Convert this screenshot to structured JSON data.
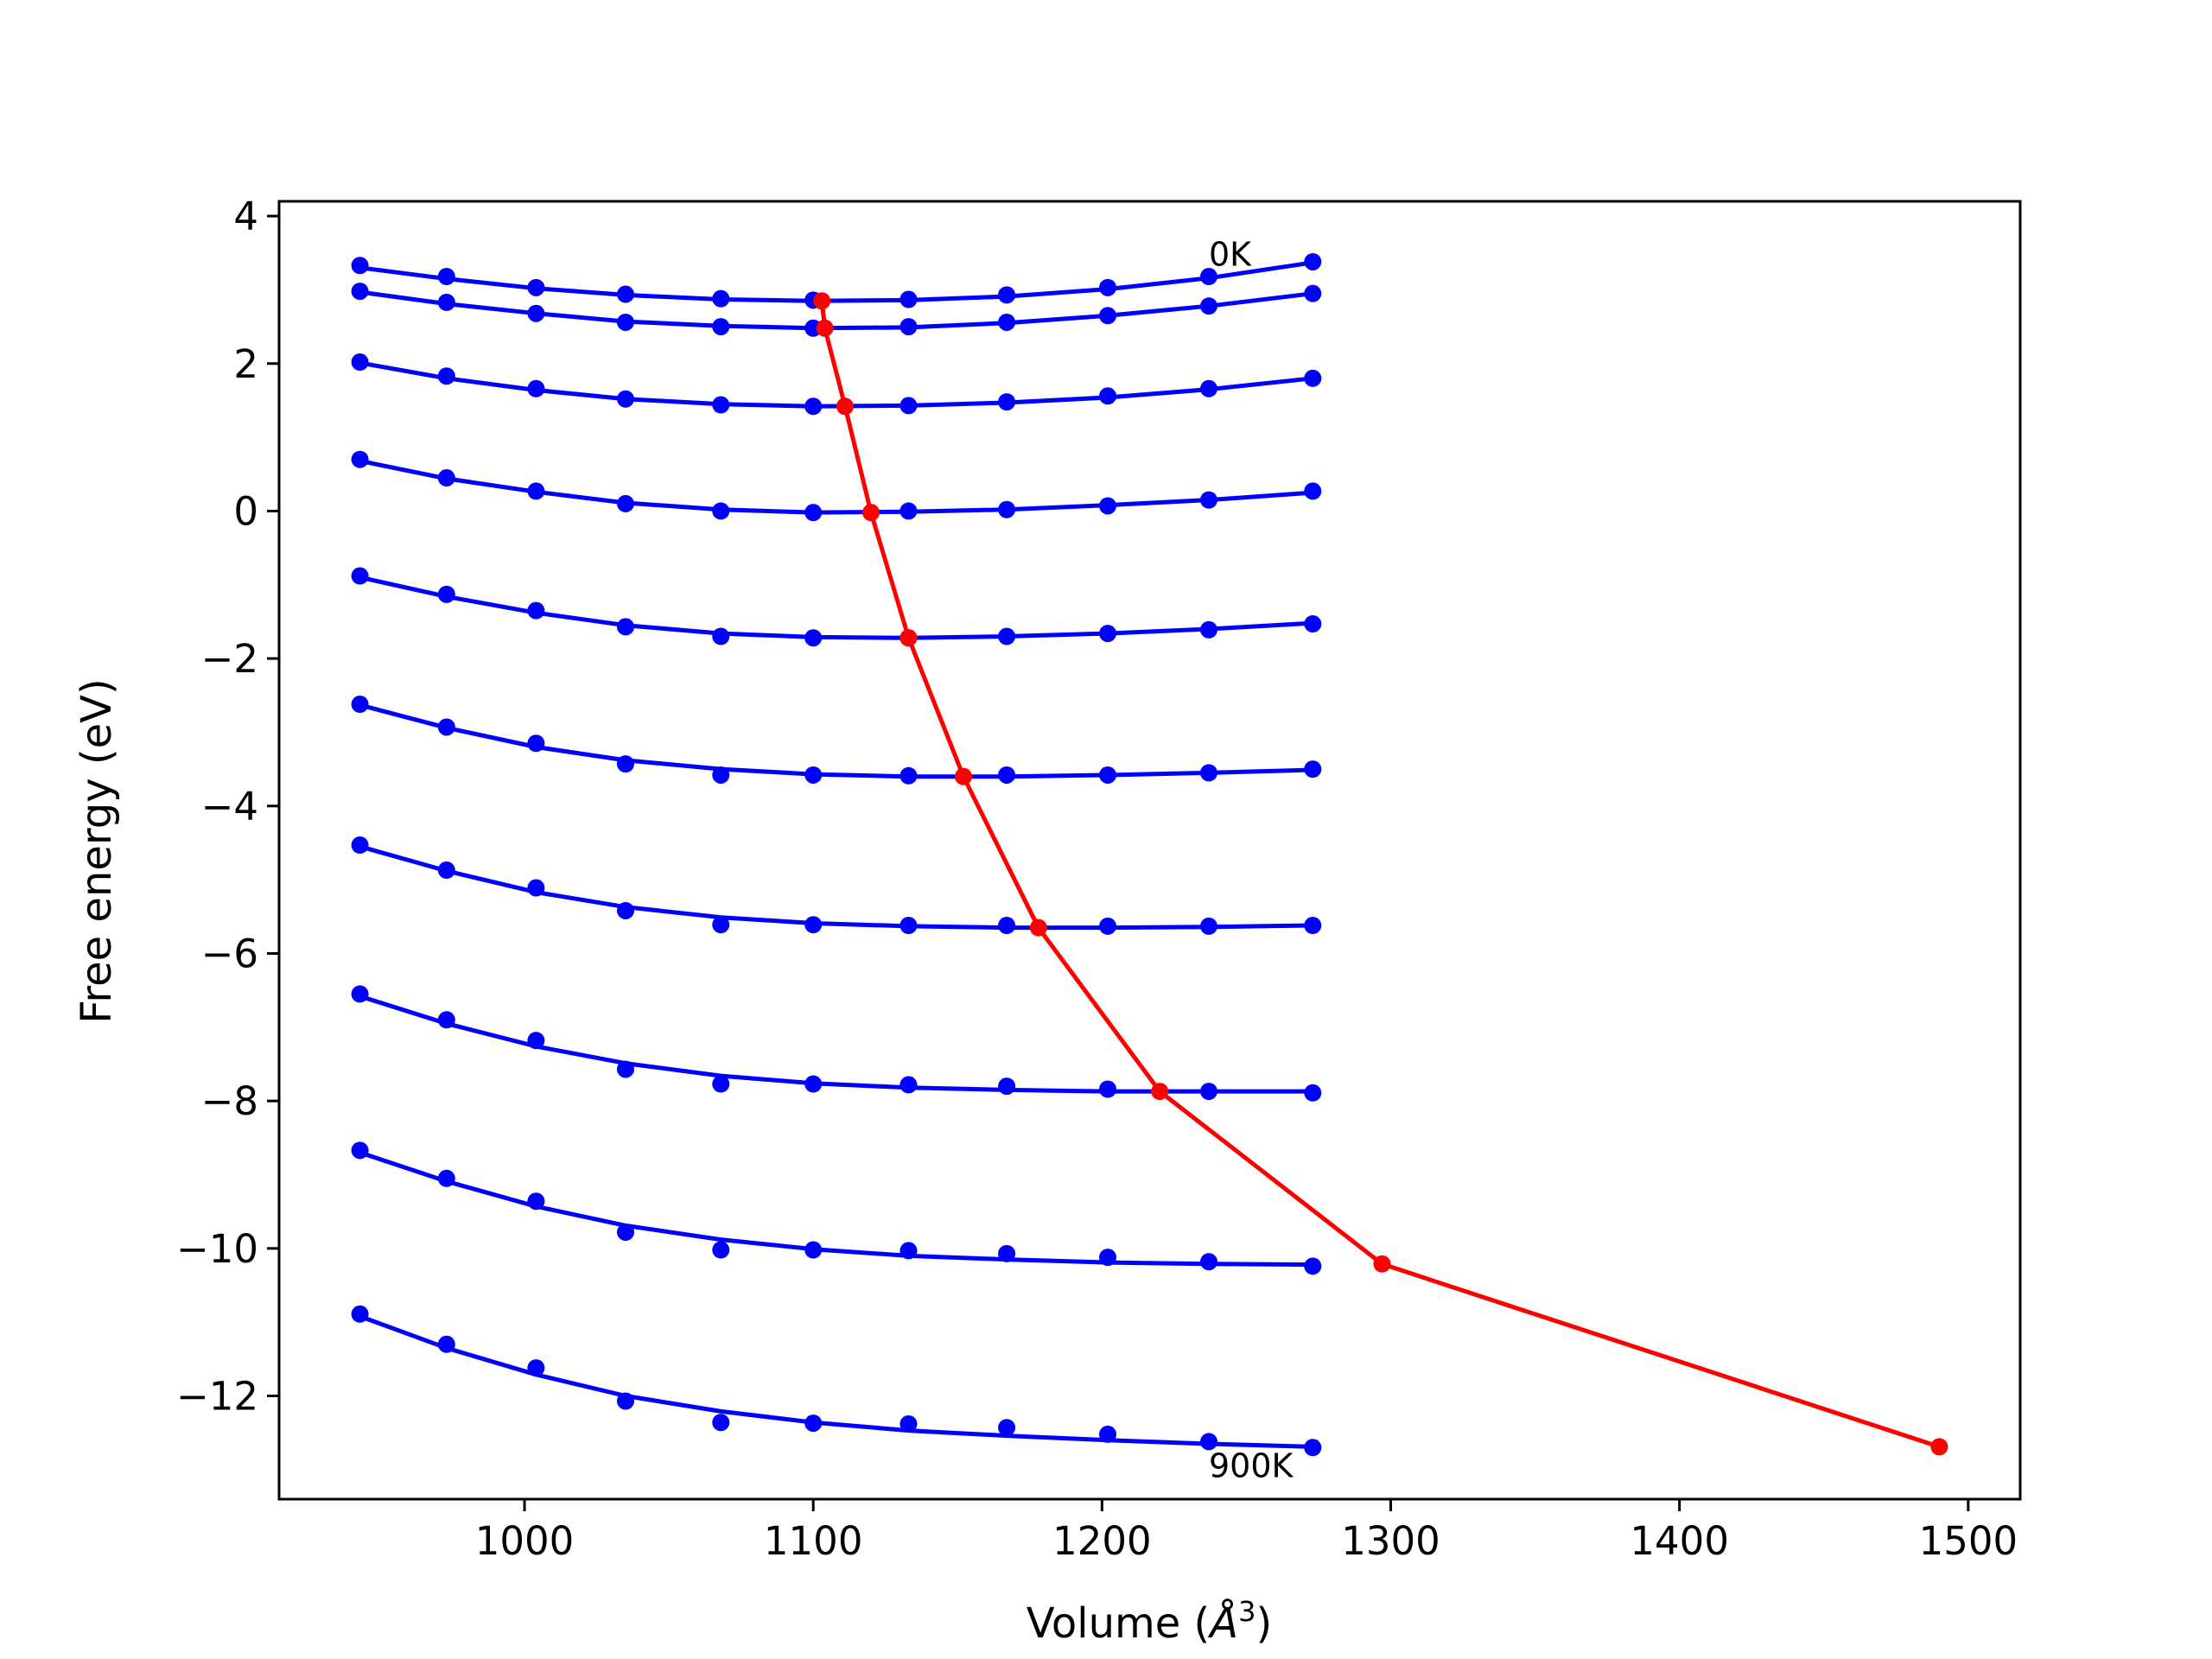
{
  "chart_data": {
    "type": "line",
    "title": "",
    "xlabel_main": "Volume (",
    "xlabel_unit": "Å",
    "xlabel_sup": "3",
    "xlabel_end": ")",
    "ylabel": "Free energy (eV)",
    "xlim": [
      915,
      1518
    ],
    "ylim": [
      -13.4,
      4.2
    ],
    "xticks": [
      1000,
      1100,
      1200,
      1300,
      1400,
      1500
    ],
    "yticks": [
      4,
      2,
      0,
      -2,
      -4,
      -6,
      -8,
      -10,
      -12
    ],
    "ytick_labels": [
      "4",
      "2",
      "0",
      "−2",
      "−4",
      "−6",
      "−8",
      "−10",
      "−12"
    ],
    "grid": false,
    "colors": {
      "fit": "#0000ff",
      "points": "#0000ff",
      "minimum": "#ff0000"
    },
    "x": [
      943,
      973,
      1004,
      1035,
      1068,
      1100,
      1133,
      1167,
      1202,
      1237,
      1273
    ],
    "isotherms": [
      {
        "points": [
          3.33,
          3.18,
          3.03,
          2.94,
          2.88,
          2.86,
          2.87,
          2.93,
          3.03,
          3.18,
          3.38
        ],
        "fit": [
          3.3,
          3.15,
          3.02,
          2.93,
          2.87,
          2.85,
          2.86,
          2.91,
          3.01,
          3.16,
          3.37
        ]
      },
      {
        "points": [
          2.98,
          2.83,
          2.68,
          2.56,
          2.5,
          2.48,
          2.5,
          2.56,
          2.65,
          2.78,
          2.95
        ],
        "fit": [
          2.97,
          2.81,
          2.68,
          2.57,
          2.51,
          2.48,
          2.49,
          2.55,
          2.65,
          2.78,
          2.95
        ]
      },
      {
        "points": [
          2.02,
          1.83,
          1.66,
          1.52,
          1.44,
          1.42,
          1.43,
          1.48,
          1.56,
          1.66,
          1.8
        ],
        "fit": [
          2.01,
          1.8,
          1.64,
          1.52,
          1.45,
          1.42,
          1.43,
          1.47,
          1.54,
          1.65,
          1.8
        ]
      },
      {
        "points": [
          0.7,
          0.45,
          0.27,
          0.1,
          0.0,
          -0.02,
          0.0,
          0.02,
          0.07,
          0.15,
          0.27
        ],
        "fit": [
          0.68,
          0.44,
          0.26,
          0.11,
          0.02,
          -0.02,
          -0.01,
          0.02,
          0.08,
          0.15,
          0.25
        ]
      },
      {
        "points": [
          -0.88,
          -1.13,
          -1.35,
          -1.57,
          -1.7,
          -1.72,
          -1.72,
          -1.7,
          -1.66,
          -1.61,
          -1.53
        ],
        "fit": [
          -0.9,
          -1.16,
          -1.38,
          -1.55,
          -1.66,
          -1.71,
          -1.72,
          -1.7,
          -1.66,
          -1.6,
          -1.52
        ]
      },
      {
        "points": [
          -2.62,
          -2.93,
          -3.15,
          -3.43,
          -3.58,
          -3.58,
          -3.59,
          -3.58,
          -3.58,
          -3.55,
          -3.5
        ],
        "fit": [
          -2.63,
          -2.94,
          -3.2,
          -3.38,
          -3.5,
          -3.57,
          -3.6,
          -3.6,
          -3.58,
          -3.55,
          -3.51
        ]
      },
      {
        "points": [
          -4.53,
          -4.87,
          -5.11,
          -5.42,
          -5.61,
          -5.61,
          -5.62,
          -5.62,
          -5.63,
          -5.63,
          -5.62
        ],
        "fit": [
          -4.55,
          -4.88,
          -5.17,
          -5.37,
          -5.51,
          -5.59,
          -5.63,
          -5.65,
          -5.65,
          -5.64,
          -5.62
        ]
      },
      {
        "points": [
          -6.55,
          -6.9,
          -7.18,
          -7.57,
          -7.77,
          -7.77,
          -7.78,
          -7.8,
          -7.84,
          -7.87,
          -7.89
        ],
        "fit": [
          -6.58,
          -6.95,
          -7.26,
          -7.49,
          -7.66,
          -7.76,
          -7.82,
          -7.85,
          -7.87,
          -7.87,
          -7.87
        ]
      },
      {
        "points": [
          -8.67,
          -9.05,
          -9.36,
          -9.78,
          -10.02,
          -10.02,
          -10.03,
          -10.07,
          -10.12,
          -10.18,
          -10.24
        ],
        "fit": [
          -8.7,
          -9.09,
          -9.43,
          -9.69,
          -9.88,
          -10.01,
          -10.1,
          -10.15,
          -10.19,
          -10.21,
          -10.22
        ]
      },
      {
        "points": [
          -10.89,
          -11.3,
          -11.62,
          -12.07,
          -12.36,
          -12.37,
          -12.38,
          -12.43,
          -12.52,
          -12.62,
          -12.7
        ],
        "fit": [
          -10.92,
          -11.35,
          -11.71,
          -12.0,
          -12.21,
          -12.36,
          -12.47,
          -12.54,
          -12.6,
          -12.65,
          -12.69
        ]
      }
    ],
    "minimum_curve": {
      "x": [
        1103,
        1104,
        1111,
        1120,
        1133,
        1152,
        1178,
        1220,
        1297,
        1490
      ],
      "y": [
        2.85,
        2.48,
        1.42,
        -0.02,
        -1.72,
        -3.6,
        -5.65,
        -7.87,
        -10.21,
        -12.69
      ]
    },
    "annotations": [
      {
        "text": "0K",
        "x": 1237,
        "y": 3.48
      },
      {
        "text": "900K",
        "x": 1237,
        "y": -12.95
      }
    ]
  }
}
